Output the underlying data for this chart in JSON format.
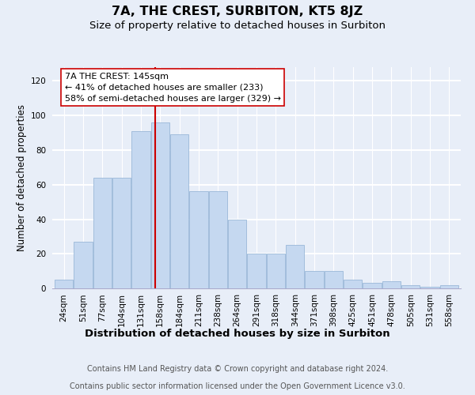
{
  "title": "7A, THE CREST, SURBITON, KT5 8JZ",
  "subtitle": "Size of property relative to detached houses in Surbiton",
  "xlabel": "Distribution of detached houses by size in Surbiton",
  "ylabel": "Number of detached properties",
  "categories": [
    "24sqm",
    "51sqm",
    "77sqm",
    "104sqm",
    "131sqm",
    "158sqm",
    "184sqm",
    "211sqm",
    "238sqm",
    "264sqm",
    "291sqm",
    "318sqm",
    "344sqm",
    "371sqm",
    "398sqm",
    "425sqm",
    "451sqm",
    "478sqm",
    "505sqm",
    "531sqm",
    "558sqm"
  ],
  "values": [
    5,
    27,
    64,
    64,
    91,
    96,
    89,
    56,
    56,
    40,
    20,
    20,
    25,
    10,
    10,
    5,
    3,
    4,
    2,
    1,
    2
  ],
  "bar_color": "#c5d8f0",
  "bar_edge_color": "#9ab8d8",
  "vline_color": "#cc0000",
  "vline_x": 4.75,
  "annotation_lines": [
    "7A THE CREST: 145sqm",
    "← 41% of detached houses are smaller (233)",
    "58% of semi-detached houses are larger (329) →"
  ],
  "ylim": [
    0,
    128
  ],
  "yticks": [
    0,
    20,
    40,
    60,
    80,
    100,
    120
  ],
  "footer_line1": "Contains HM Land Registry data © Crown copyright and database right 2024.",
  "footer_line2": "Contains public sector information licensed under the Open Government Licence v3.0.",
  "background_color": "#e8eef8",
  "plot_bg_color": "#e8eef8",
  "grid_color": "#ffffff",
  "title_fontsize": 11.5,
  "subtitle_fontsize": 9.5,
  "xlabel_fontsize": 9.5,
  "ylabel_fontsize": 8.5,
  "annotation_fontsize": 8.0,
  "footer_fontsize": 7.0,
  "tick_fontsize": 7.5
}
